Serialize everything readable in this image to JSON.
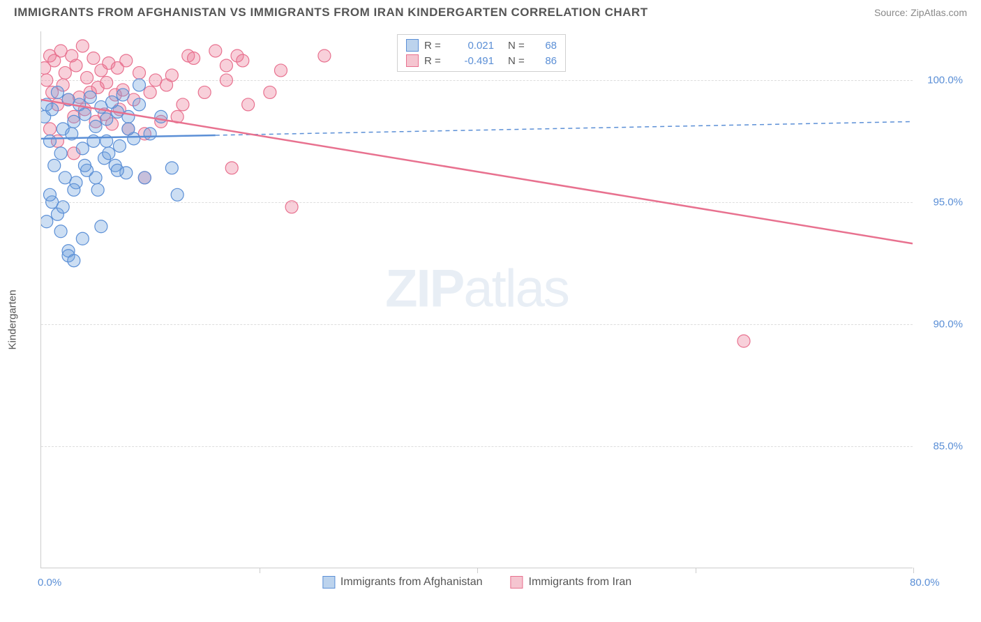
{
  "title": "IMMIGRANTS FROM AFGHANISTAN VS IMMIGRANTS FROM IRAN KINDERGARTEN CORRELATION CHART",
  "source": "Source: ZipAtlas.com",
  "watermark_bold": "ZIP",
  "watermark_rest": "atlas",
  "y_axis_label": "Kindergarten",
  "chart": {
    "type": "scatter-with-trend",
    "xlim": [
      0,
      80
    ],
    "ylim": [
      80,
      102
    ],
    "x_ticks": [
      0,
      20,
      40,
      60,
      80
    ],
    "x_tick_labels": [
      "0.0%",
      "",
      "",
      "",
      "80.0%"
    ],
    "y_ticks": [
      85,
      90,
      95,
      100
    ],
    "y_tick_labels": [
      "85.0%",
      "90.0%",
      "95.0%",
      "100.0%"
    ],
    "grid_color": "#dddddd",
    "background": "#ffffff",
    "marker_radius": 9,
    "marker_stroke_width": 1.2,
    "series": [
      {
        "name": "Immigrants from Afghanistan",
        "color_fill": "rgba(110,160,220,0.35)",
        "color_stroke": "#5b8fd6",
        "legend_swatch_fill": "#bcd3ed",
        "legend_swatch_stroke": "#5b8fd6",
        "r_value": "0.021",
        "n_value": "68",
        "trend": {
          "x1": 0,
          "y1": 97.6,
          "x2": 80,
          "y2": 98.3,
          "solid_until_x": 16
        },
        "points": [
          [
            0.3,
            98.5
          ],
          [
            0.5,
            99.0
          ],
          [
            0.8,
            97.5
          ],
          [
            1.0,
            98.8
          ],
          [
            1.2,
            96.5
          ],
          [
            1.5,
            99.5
          ],
          [
            1.8,
            97.0
          ],
          [
            2.0,
            98.0
          ],
          [
            2.2,
            96.0
          ],
          [
            2.5,
            99.2
          ],
          [
            2.8,
            97.8
          ],
          [
            3.0,
            98.3
          ],
          [
            3.2,
            95.8
          ],
          [
            3.5,
            99.0
          ],
          [
            3.8,
            97.2
          ],
          [
            4.0,
            98.6
          ],
          [
            4.2,
            96.3
          ],
          [
            4.5,
            99.3
          ],
          [
            4.8,
            97.5
          ],
          [
            5.0,
            98.1
          ],
          [
            5.2,
            95.5
          ],
          [
            5.5,
            98.9
          ],
          [
            5.8,
            96.8
          ],
          [
            6.0,
            98.4
          ],
          [
            6.2,
            97.0
          ],
          [
            6.5,
            99.1
          ],
          [
            6.8,
            96.5
          ],
          [
            7.0,
            98.7
          ],
          [
            7.2,
            97.3
          ],
          [
            7.5,
            99.4
          ],
          [
            7.8,
            96.2
          ],
          [
            8.0,
            98.5
          ],
          [
            8.5,
            97.6
          ],
          [
            9.0,
            99.0
          ],
          [
            9.5,
            96.0
          ],
          [
            1.0,
            95.0
          ],
          [
            1.5,
            94.5
          ],
          [
            2.0,
            94.8
          ],
          [
            2.5,
            93.0
          ],
          [
            3.0,
            95.5
          ],
          [
            0.8,
            95.3
          ],
          [
            2.5,
            92.8
          ],
          [
            3.0,
            92.6
          ],
          [
            4.0,
            96.5
          ],
          [
            5.0,
            96.0
          ],
          [
            6.0,
            97.5
          ],
          [
            7.0,
            96.3
          ],
          [
            8.0,
            98.0
          ],
          [
            9.0,
            99.8
          ],
          [
            10.0,
            97.8
          ],
          [
            11.0,
            98.5
          ],
          [
            12.0,
            96.4
          ],
          [
            12.5,
            95.3
          ],
          [
            5.5,
            94.0
          ],
          [
            1.8,
            93.8
          ],
          [
            0.5,
            94.2
          ],
          [
            3.8,
            93.5
          ]
        ]
      },
      {
        "name": "Immigrants from Iran",
        "color_fill": "rgba(235,120,150,0.35)",
        "color_stroke": "#e8718f",
        "legend_swatch_fill": "#f5c5d0",
        "legend_swatch_stroke": "#e8718f",
        "r_value": "-0.491",
        "n_value": "86",
        "trend": {
          "x1": 0,
          "y1": 99.2,
          "x2": 80,
          "y2": 93.3,
          "solid_until_x": 80
        },
        "points": [
          [
            0.3,
            100.5
          ],
          [
            0.5,
            100.0
          ],
          [
            0.8,
            101.0
          ],
          [
            1.0,
            99.5
          ],
          [
            1.2,
            100.8
          ],
          [
            1.5,
            99.0
          ],
          [
            1.8,
            101.2
          ],
          [
            2.0,
            99.8
          ],
          [
            2.2,
            100.3
          ],
          [
            2.5,
            99.2
          ],
          [
            2.8,
            101.0
          ],
          [
            3.0,
            98.5
          ],
          [
            3.2,
            100.6
          ],
          [
            3.5,
            99.3
          ],
          [
            3.8,
            101.4
          ],
          [
            4.0,
            98.8
          ],
          [
            4.2,
            100.1
          ],
          [
            4.5,
            99.5
          ],
          [
            4.8,
            100.9
          ],
          [
            5.0,
            98.3
          ],
          [
            5.2,
            99.7
          ],
          [
            5.5,
            100.4
          ],
          [
            5.8,
            98.6
          ],
          [
            6.0,
            99.9
          ],
          [
            6.2,
            100.7
          ],
          [
            6.5,
            98.2
          ],
          [
            6.8,
            99.4
          ],
          [
            7.0,
            100.5
          ],
          [
            7.2,
            98.8
          ],
          [
            7.5,
            99.6
          ],
          [
            7.8,
            100.8
          ],
          [
            8.0,
            98.0
          ],
          [
            8.5,
            99.2
          ],
          [
            9.0,
            100.3
          ],
          [
            9.5,
            97.8
          ],
          [
            10.0,
            99.5
          ],
          [
            10.5,
            100.0
          ],
          [
            11.0,
            98.3
          ],
          [
            11.5,
            99.8
          ],
          [
            12.0,
            100.2
          ],
          [
            12.5,
            98.5
          ],
          [
            13.0,
            99.0
          ],
          [
            13.5,
            101.0
          ],
          [
            14.0,
            100.9
          ],
          [
            15.0,
            99.5
          ],
          [
            16.0,
            101.2
          ],
          [
            17.0,
            100.0
          ],
          [
            18.0,
            101.0
          ],
          [
            19.0,
            99.0
          ],
          [
            21.0,
            99.5
          ],
          [
            22.0,
            100.4
          ],
          [
            23.0,
            94.8
          ],
          [
            9.5,
            96.0
          ],
          [
            3.0,
            97.0
          ],
          [
            1.5,
            97.5
          ],
          [
            0.8,
            98.0
          ],
          [
            17.0,
            100.6
          ],
          [
            18.5,
            100.8
          ],
          [
            26.0,
            101.0
          ],
          [
            64.5,
            89.3
          ],
          [
            17.5,
            96.4
          ]
        ]
      }
    ]
  },
  "legend_labels": {
    "r": "R  =",
    "n": "N  ="
  }
}
